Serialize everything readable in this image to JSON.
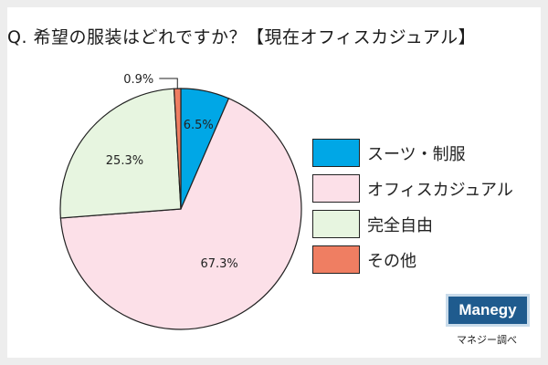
{
  "title": "Q. 希望の服装はどれですか？【現在オフィスカジュアル】",
  "logo_text": "Manegy",
  "credit": "マネジー調べ",
  "chart_data": {
    "type": "pie",
    "start_angle_deg": 0,
    "direction": "clockwise",
    "slices": [
      {
        "label": "スーツ・制服",
        "value": 6.5,
        "value_label": "6.5%",
        "color": "#00a7e6"
      },
      {
        "label": "オフィスカジュアル",
        "value": 67.3,
        "value_label": "67.3%",
        "color": "#fce0e8"
      },
      {
        "label": "完全自由",
        "value": 25.3,
        "value_label": "25.3%",
        "color": "#e7f5e0"
      },
      {
        "label": "その他",
        "value": 0.9,
        "value_label": "0.9%",
        "color": "#ef7e62"
      }
    ],
    "legend_placement": "right"
  }
}
